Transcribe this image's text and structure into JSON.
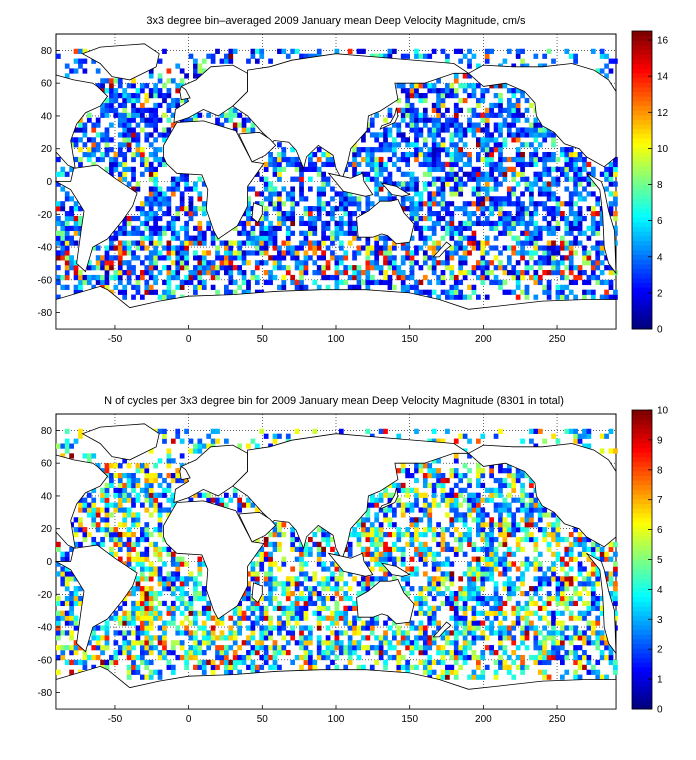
{
  "chart_data": [
    {
      "type": "heatmap",
      "title": "3x3 degree bin–averaged 2009 January mean Deep Velocity Magnitude, cm/s",
      "xlim": [
        -90,
        290
      ],
      "ylim": [
        -90,
        90
      ],
      "xticks": [
        -50,
        0,
        50,
        100,
        150,
        200,
        250
      ],
      "yticks": [
        -80,
        -60,
        -40,
        -20,
        0,
        20,
        40,
        60,
        80
      ],
      "grid": true,
      "colormap": "jet",
      "clim": [
        0,
        16.5
      ],
      "colorbar_ticks": [
        0,
        2,
        4,
        6,
        8,
        10,
        12,
        14,
        16
      ],
      "bin_size_deg": 3,
      "dominant_range": [
        2,
        6
      ],
      "notes_visible": "coastline overlay; dense bins in North Atlantic, North Pacific, Southern Ocean"
    },
    {
      "type": "heatmap",
      "title": "N of cycles per 3x3 degree bin for 2009 January mean Deep Velocity Magnitude (8301 in total)",
      "xlim": [
        -90,
        290
      ],
      "ylim": [
        -90,
        90
      ],
      "xticks": [
        -50,
        0,
        50,
        100,
        150,
        200,
        250
      ],
      "yticks": [
        -80,
        -60,
        -40,
        -20,
        0,
        20,
        40,
        60,
        80
      ],
      "grid": true,
      "colormap": "jet",
      "clim": [
        0,
        10
      ],
      "colorbar_ticks": [
        0,
        1,
        2,
        3,
        4,
        5,
        6,
        7,
        8,
        9,
        10
      ],
      "bin_size_deg": 3,
      "total_cycles": 8301
    }
  ]
}
